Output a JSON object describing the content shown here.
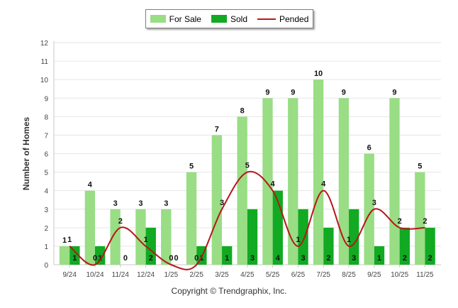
{
  "chart_data": {
    "type": "bar",
    "ylabel": "Number of Homes",
    "xlabel": "",
    "ylim": [
      0,
      12
    ],
    "yticks": [
      0,
      1,
      2,
      3,
      4,
      5,
      6,
      7,
      8,
      9,
      10,
      11,
      12
    ],
    "categories": [
      "9/24",
      "10/24",
      "11/24",
      "12/24",
      "1/25",
      "2/25",
      "3/25",
      "4/25",
      "5/25",
      "6/25",
      "7/25",
      "8/25",
      "9/25",
      "10/25",
      "11/25"
    ],
    "series": [
      {
        "name": "For Sale",
        "kind": "bar",
        "color": "#99dd85",
        "values": [
          1,
          4,
          3,
          3,
          3,
          5,
          7,
          8,
          9,
          9,
          10,
          9,
          6,
          9,
          5
        ]
      },
      {
        "name": "Sold",
        "kind": "bar",
        "color": "#11aa22",
        "values": [
          1,
          1,
          0,
          2,
          0,
          1,
          1,
          3,
          4,
          3,
          2,
          3,
          1,
          2,
          2
        ]
      },
      {
        "name": "Pended",
        "kind": "line",
        "color": "#b8161a",
        "values": [
          1,
          0,
          2,
          1,
          0,
          0,
          3,
          5,
          4,
          1,
          4,
          1,
          3,
          2,
          2
        ]
      }
    ],
    "legend": "top-center",
    "grid": true
  },
  "footer": "Copyright © Trendgraphix, Inc."
}
